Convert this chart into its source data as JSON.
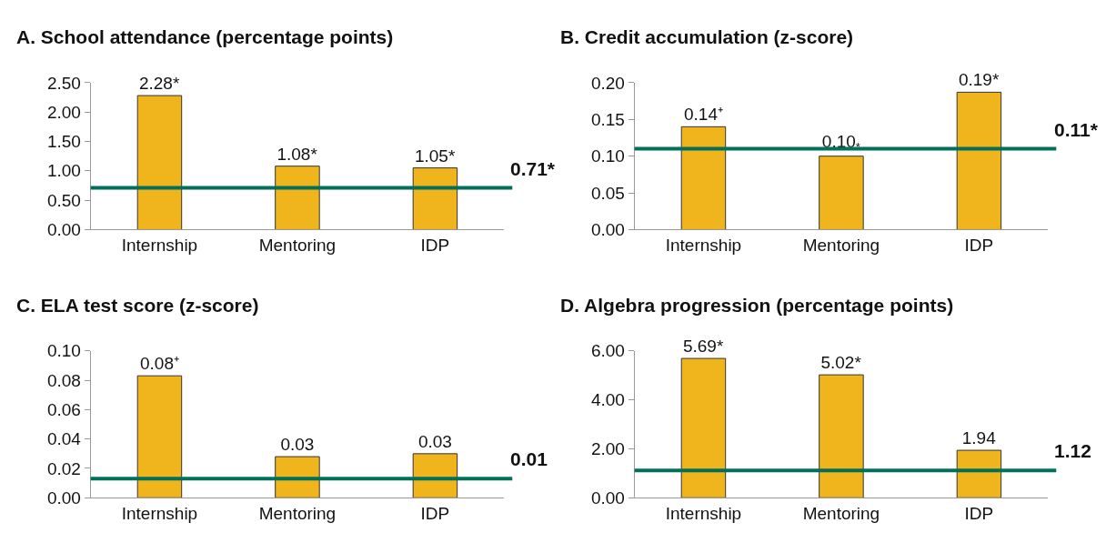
{
  "chart_data": [
    {
      "type": "bar",
      "title": "A. School attendance (percentage points)",
      "categories": [
        "Internship",
        "Mentoring",
        "IDP"
      ],
      "values": [
        2.28,
        1.08,
        1.05
      ],
      "value_labels": [
        "2.28*",
        "1.08*",
        "1.05*"
      ],
      "color": "#f0b51c",
      "ylim": [
        0,
        2.5
      ],
      "yticks": [
        {
          "value": 0,
          "label": "0.00"
        },
        {
          "value": 0.5,
          "label": "0.50"
        },
        {
          "value": 1,
          "label": "1.00"
        },
        {
          "value": 1.5,
          "label": "1.50"
        },
        {
          "value": 2,
          "label": "2.00"
        },
        {
          "value": 2.5,
          "label": "2.50"
        }
      ],
      "ref_lines": [
        {
          "axis": "y",
          "value": 0.71,
          "label": "0.71*",
          "color": "#00705a"
        }
      ]
    },
    {
      "type": "bar",
      "title": "B. Credit accumulation (z-score)",
      "categories": [
        "Internship",
        "Mentoring",
        "IDP"
      ],
      "values": [
        0.14,
        0.1,
        0.187
      ],
      "value_labels": [
        "0.14⁺",
        "0.10$_{*}$",
        "0.19*"
      ],
      "color": "#f0b51c",
      "ylim": [
        0,
        0.2
      ],
      "yticks": [
        {
          "value": 0,
          "label": "0.00"
        },
        0.05,
        {
          "value": 0.1,
          "label": "0.10"
        },
        0.15,
        {
          "value": 0.2,
          "label": "0.20"
        }
      ],
      "ref_lines": [
        {
          "axis": "y",
          "value": 0.11,
          "label": "0.11*",
          "color": "#00705a"
        }
      ]
    },
    {
      "type": "bar",
      "title": "C. ELA test score (z-score)",
      "categories": [
        "Internship",
        "Mentoring",
        "IDP"
      ],
      "values": [
        0.083,
        0.028,
        0.03
      ],
      "value_labels": [
        "0.08⁺",
        "0.03",
        "0.03"
      ],
      "color": "#f0b51c",
      "ylim": [
        0,
        0.1
      ],
      "yticks": [
        {
          "value": 0,
          "label": "0.00"
        },
        0.02,
        0.04,
        0.06,
        0.08,
        {
          "value": 0.1,
          "label": "0.10"
        }
      ],
      "ref_lines": [
        {
          "axis": "y",
          "value": 0.013,
          "label": "0.01",
          "color": "#00705a"
        }
      ]
    },
    {
      "type": "bar",
      "title": "D. Algebra progression (percentage points)",
      "categories": [
        "Internship",
        "Mentoring",
        "IDP"
      ],
      "values": [
        5.69,
        5.02,
        1.94
      ],
      "value_labels": [
        "5.69*",
        "5.02*",
        "1.94"
      ],
      "color": "#f0b51c",
      "ylim": [
        0,
        6
      ],
      "yticks": [
        {
          "value": 0,
          "label": "0.00"
        },
        {
          "value": 2,
          "label": "2.00"
        },
        {
          "value": 4,
          "label": "4.00"
        },
        {
          "value": 6,
          "label": "6.00"
        }
      ],
      "ref_lines": [
        {
          "axis": "y",
          "value": 1.12,
          "label": "1.12",
          "color": "#00705a"
        }
      ]
    }
  ]
}
